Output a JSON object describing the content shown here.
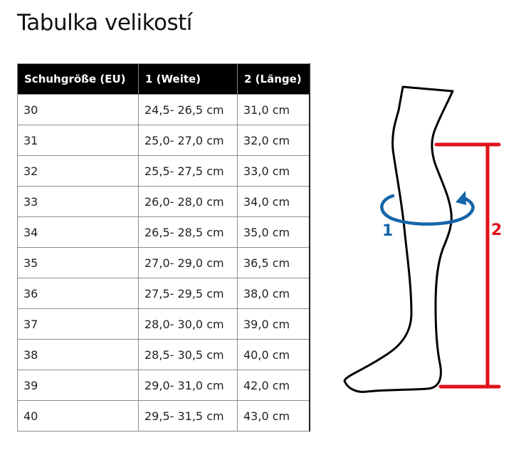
{
  "title": "Tabulka velikostí",
  "table": {
    "headers": [
      "Schuhgröße (EU)",
      "1 (Weite)",
      "2 (Länge)"
    ],
    "rows": [
      [
        "30",
        "24,5- 26,5 cm",
        "31,0 cm"
      ],
      [
        "31",
        "25,0- 27,0 cm",
        "32,0 cm"
      ],
      [
        "32",
        "25,5- 27,5 cm",
        "33,0 cm"
      ],
      [
        "33",
        "26,0- 28,0 cm",
        "34,0 cm"
      ],
      [
        "34",
        "26,5- 28,5 cm",
        "35,0 cm"
      ],
      [
        "35",
        "27,0- 29,0 cm",
        "36,5 cm"
      ],
      [
        "36",
        "27,5- 29,5 cm",
        "38,0 cm"
      ],
      [
        "37",
        "28,0- 30,0 cm",
        "39,0 cm"
      ],
      [
        "38",
        "28,5- 30,5 cm",
        "40,0 cm"
      ],
      [
        "39",
        "29,0- 31,0 cm",
        "42,0 cm"
      ],
      [
        "40",
        "29,5- 31,5 cm",
        "43,0 cm"
      ]
    ]
  },
  "diagram": {
    "label_width": "1",
    "label_length": "2",
    "colors": {
      "outline": "#000000",
      "width_measure": "#1565a8",
      "length_measure": "#e0121b"
    }
  }
}
